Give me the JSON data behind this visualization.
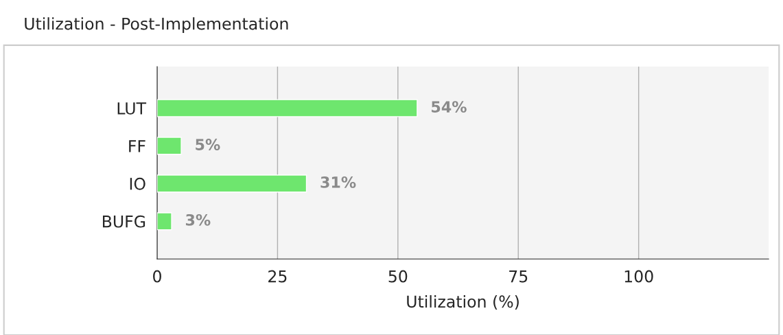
{
  "chart_data": {
    "type": "bar",
    "orientation": "horizontal",
    "title": "Utilization - Post-Implementation",
    "xlabel": "Utilization (%)",
    "categories": [
      "LUT",
      "FF",
      "IO",
      "BUFG"
    ],
    "values": [
      54,
      5,
      31,
      3
    ],
    "value_labels": [
      "54%",
      "5%",
      "31%",
      "3%"
    ],
    "color": "#6ee66e",
    "xlim": [
      0,
      127
    ],
    "xticks": [
      0,
      25,
      50,
      75,
      100
    ],
    "grid": "x"
  }
}
